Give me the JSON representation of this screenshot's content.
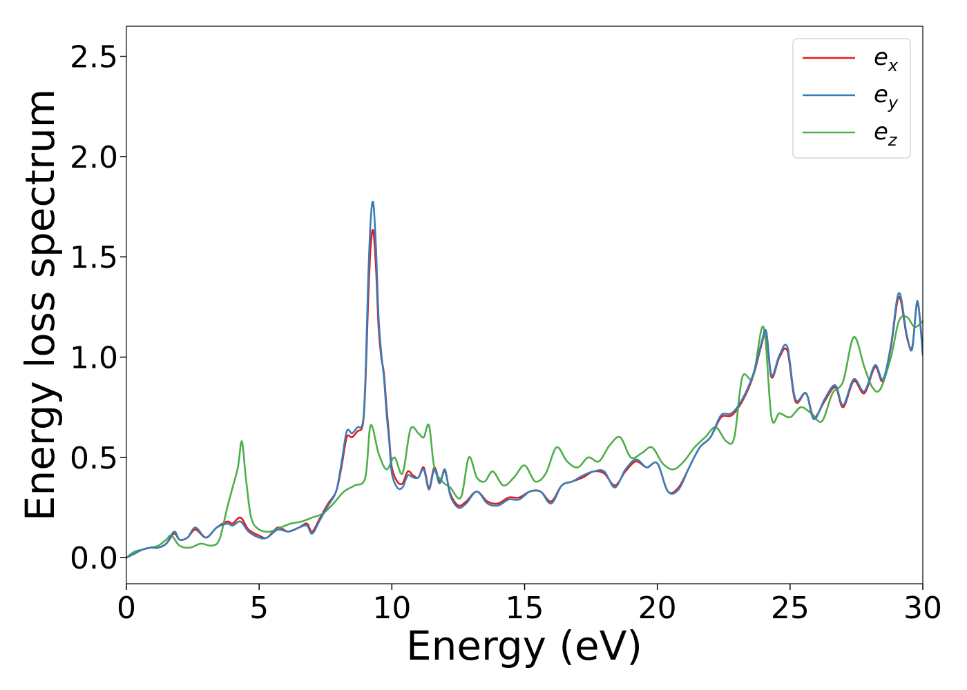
{
  "chart_data": {
    "type": "line",
    "title": "",
    "xlabel": "Energy (eV)",
    "ylabel": "Energy loss spectrum",
    "xlim": [
      0,
      30
    ],
    "ylim": [
      -0.13,
      2.65
    ],
    "xticks": [
      0,
      5,
      10,
      15,
      20,
      25,
      30
    ],
    "xtick_labels": [
      "0",
      "5",
      "10",
      "15",
      "20",
      "25",
      "30"
    ],
    "yticks": [
      0.0,
      0.5,
      1.0,
      1.5,
      2.0,
      2.5
    ],
    "ytick_labels": [
      "0.0",
      "0.5",
      "1.0",
      "1.5",
      "2.0",
      "2.5"
    ],
    "grid": false,
    "legend_position": "top-right",
    "series": [
      {
        "name": "e_x",
        "label_base": "e",
        "label_sub": "x",
        "color": "#e41a1c",
        "points": [
          [
            0,
            0
          ],
          [
            0.3,
            0.02
          ],
          [
            0.6,
            0.04
          ],
          [
            0.9,
            0.05
          ],
          [
            1.2,
            0.05
          ],
          [
            1.5,
            0.07
          ],
          [
            1.8,
            0.12
          ],
          [
            2.0,
            0.09
          ],
          [
            2.3,
            0.1
          ],
          [
            2.6,
            0.14
          ],
          [
            3.0,
            0.1
          ],
          [
            3.4,
            0.15
          ],
          [
            3.8,
            0.18
          ],
          [
            4.0,
            0.17
          ],
          [
            4.3,
            0.2
          ],
          [
            4.6,
            0.14
          ],
          [
            5.0,
            0.11
          ],
          [
            5.3,
            0.1
          ],
          [
            5.7,
            0.15
          ],
          [
            6.1,
            0.13
          ],
          [
            6.5,
            0.15
          ],
          [
            6.8,
            0.17
          ],
          [
            7.0,
            0.13
          ],
          [
            7.3,
            0.2
          ],
          [
            7.6,
            0.27
          ],
          [
            7.9,
            0.33
          ],
          [
            8.1,
            0.45
          ],
          [
            8.3,
            0.6
          ],
          [
            8.5,
            0.6
          ],
          [
            8.7,
            0.63
          ],
          [
            8.9,
            0.66
          ],
          [
            9.0,
            0.85
          ],
          [
            9.1,
            1.25
          ],
          [
            9.2,
            1.55
          ],
          [
            9.3,
            1.63
          ],
          [
            9.4,
            1.45
          ],
          [
            9.5,
            1.15
          ],
          [
            9.6,
            1.0
          ],
          [
            9.7,
            0.92
          ],
          [
            9.8,
            0.75
          ],
          [
            9.9,
            0.6
          ],
          [
            10.0,
            0.45
          ],
          [
            10.2,
            0.38
          ],
          [
            10.4,
            0.37
          ],
          [
            10.6,
            0.43
          ],
          [
            10.8,
            0.41
          ],
          [
            11.0,
            0.4
          ],
          [
            11.2,
            0.45
          ],
          [
            11.4,
            0.35
          ],
          [
            11.6,
            0.45
          ],
          [
            11.8,
            0.38
          ],
          [
            12.0,
            0.43
          ],
          [
            12.2,
            0.32
          ],
          [
            12.5,
            0.26
          ],
          [
            12.8,
            0.28
          ],
          [
            13.2,
            0.33
          ],
          [
            13.6,
            0.28
          ],
          [
            14.0,
            0.27
          ],
          [
            14.4,
            0.3
          ],
          [
            14.8,
            0.3
          ],
          [
            15.2,
            0.33
          ],
          [
            15.6,
            0.33
          ],
          [
            16.0,
            0.28
          ],
          [
            16.4,
            0.36
          ],
          [
            16.8,
            0.38
          ],
          [
            17.2,
            0.4
          ],
          [
            17.6,
            0.43
          ],
          [
            18.0,
            0.42
          ],
          [
            18.4,
            0.36
          ],
          [
            18.8,
            0.43
          ],
          [
            19.2,
            0.48
          ],
          [
            19.6,
            0.45
          ],
          [
            20.0,
            0.47
          ],
          [
            20.4,
            0.33
          ],
          [
            20.8,
            0.35
          ],
          [
            21.2,
            0.45
          ],
          [
            21.6,
            0.55
          ],
          [
            22.0,
            0.6
          ],
          [
            22.4,
            0.7
          ],
          [
            22.8,
            0.71
          ],
          [
            23.2,
            0.78
          ],
          [
            23.6,
            0.9
          ],
          [
            23.9,
            1.05
          ],
          [
            24.1,
            1.12
          ],
          [
            24.3,
            0.9
          ],
          [
            24.6,
            1.0
          ],
          [
            24.9,
            1.03
          ],
          [
            25.2,
            0.78
          ],
          [
            25.6,
            0.82
          ],
          [
            25.9,
            0.7
          ],
          [
            26.3,
            0.78
          ],
          [
            26.7,
            0.85
          ],
          [
            27.0,
            0.75
          ],
          [
            27.4,
            0.88
          ],
          [
            27.8,
            0.82
          ],
          [
            28.2,
            0.95
          ],
          [
            28.5,
            0.88
          ],
          [
            28.8,
            1.05
          ],
          [
            29.1,
            1.3
          ],
          [
            29.4,
            1.1
          ],
          [
            29.6,
            1.05
          ],
          [
            29.8,
            1.27
          ],
          [
            30.0,
            1.02
          ]
        ]
      },
      {
        "name": "e_y",
        "label_base": "e",
        "label_sub": "y",
        "color": "#377eb8",
        "points": [
          [
            0,
            0
          ],
          [
            0.3,
            0.02
          ],
          [
            0.6,
            0.04
          ],
          [
            0.9,
            0.05
          ],
          [
            1.2,
            0.05
          ],
          [
            1.5,
            0.07
          ],
          [
            1.8,
            0.13
          ],
          [
            2.0,
            0.09
          ],
          [
            2.3,
            0.1
          ],
          [
            2.6,
            0.15
          ],
          [
            3.0,
            0.1
          ],
          [
            3.4,
            0.15
          ],
          [
            3.8,
            0.17
          ],
          [
            4.0,
            0.16
          ],
          [
            4.3,
            0.18
          ],
          [
            4.6,
            0.13
          ],
          [
            5.0,
            0.1
          ],
          [
            5.3,
            0.1
          ],
          [
            5.7,
            0.14
          ],
          [
            6.1,
            0.13
          ],
          [
            6.5,
            0.15
          ],
          [
            6.8,
            0.16
          ],
          [
            7.0,
            0.12
          ],
          [
            7.3,
            0.19
          ],
          [
            7.6,
            0.26
          ],
          [
            7.9,
            0.33
          ],
          [
            8.1,
            0.47
          ],
          [
            8.3,
            0.63
          ],
          [
            8.5,
            0.62
          ],
          [
            8.7,
            0.65
          ],
          [
            8.9,
            0.67
          ],
          [
            9.0,
            0.88
          ],
          [
            9.1,
            1.35
          ],
          [
            9.2,
            1.68
          ],
          [
            9.3,
            1.77
          ],
          [
            9.4,
            1.55
          ],
          [
            9.5,
            1.2
          ],
          [
            9.6,
            1.02
          ],
          [
            9.7,
            0.9
          ],
          [
            9.8,
            0.72
          ],
          [
            9.9,
            0.58
          ],
          [
            10.0,
            0.42
          ],
          [
            10.2,
            0.35
          ],
          [
            10.4,
            0.35
          ],
          [
            10.6,
            0.41
          ],
          [
            10.8,
            0.4
          ],
          [
            11.0,
            0.4
          ],
          [
            11.2,
            0.44
          ],
          [
            11.4,
            0.34
          ],
          [
            11.6,
            0.44
          ],
          [
            11.8,
            0.37
          ],
          [
            12.0,
            0.44
          ],
          [
            12.2,
            0.31
          ],
          [
            12.5,
            0.25
          ],
          [
            12.8,
            0.27
          ],
          [
            13.2,
            0.33
          ],
          [
            13.6,
            0.27
          ],
          [
            14.0,
            0.26
          ],
          [
            14.4,
            0.29
          ],
          [
            14.8,
            0.29
          ],
          [
            15.2,
            0.33
          ],
          [
            15.6,
            0.33
          ],
          [
            16.0,
            0.27
          ],
          [
            16.4,
            0.36
          ],
          [
            16.8,
            0.38
          ],
          [
            17.2,
            0.41
          ],
          [
            17.6,
            0.43
          ],
          [
            18.0,
            0.43
          ],
          [
            18.4,
            0.35
          ],
          [
            18.8,
            0.44
          ],
          [
            19.2,
            0.49
          ],
          [
            19.6,
            0.45
          ],
          [
            20.0,
            0.47
          ],
          [
            20.4,
            0.33
          ],
          [
            20.8,
            0.34
          ],
          [
            21.2,
            0.45
          ],
          [
            21.6,
            0.55
          ],
          [
            22.0,
            0.6
          ],
          [
            22.4,
            0.71
          ],
          [
            22.8,
            0.72
          ],
          [
            23.2,
            0.79
          ],
          [
            23.6,
            0.91
          ],
          [
            23.9,
            1.06
          ],
          [
            24.1,
            1.13
          ],
          [
            24.3,
            0.91
          ],
          [
            24.6,
            1.01
          ],
          [
            24.9,
            1.05
          ],
          [
            25.2,
            0.79
          ],
          [
            25.6,
            0.82
          ],
          [
            25.9,
            0.69
          ],
          [
            26.3,
            0.79
          ],
          [
            26.7,
            0.86
          ],
          [
            27.0,
            0.76
          ],
          [
            27.4,
            0.89
          ],
          [
            27.8,
            0.83
          ],
          [
            28.2,
            0.96
          ],
          [
            28.5,
            0.89
          ],
          [
            28.8,
            1.06
          ],
          [
            29.1,
            1.32
          ],
          [
            29.4,
            1.11
          ],
          [
            29.6,
            1.04
          ],
          [
            29.8,
            1.28
          ],
          [
            30.0,
            1.01
          ]
        ]
      },
      {
        "name": "e_z",
        "label_base": "e",
        "label_sub": "z",
        "color": "#4daf4a",
        "points": [
          [
            0,
            0
          ],
          [
            0.3,
            0.03
          ],
          [
            0.6,
            0.04
          ],
          [
            0.9,
            0.05
          ],
          [
            1.2,
            0.06
          ],
          [
            1.5,
            0.09
          ],
          [
            1.7,
            0.11
          ],
          [
            2.0,
            0.06
          ],
          [
            2.4,
            0.05
          ],
          [
            2.8,
            0.07
          ],
          [
            3.2,
            0.06
          ],
          [
            3.5,
            0.09
          ],
          [
            3.8,
            0.25
          ],
          [
            4.0,
            0.35
          ],
          [
            4.2,
            0.45
          ],
          [
            4.35,
            0.58
          ],
          [
            4.5,
            0.4
          ],
          [
            4.7,
            0.2
          ],
          [
            5.0,
            0.14
          ],
          [
            5.4,
            0.13
          ],
          [
            5.8,
            0.15
          ],
          [
            6.2,
            0.17
          ],
          [
            6.6,
            0.18
          ],
          [
            7.0,
            0.2
          ],
          [
            7.4,
            0.22
          ],
          [
            7.8,
            0.27
          ],
          [
            8.2,
            0.33
          ],
          [
            8.6,
            0.36
          ],
          [
            9.0,
            0.4
          ],
          [
            9.2,
            0.66
          ],
          [
            9.5,
            0.52
          ],
          [
            9.8,
            0.44
          ],
          [
            10.1,
            0.5
          ],
          [
            10.4,
            0.42
          ],
          [
            10.7,
            0.64
          ],
          [
            11.0,
            0.62
          ],
          [
            11.2,
            0.6
          ],
          [
            11.4,
            0.66
          ],
          [
            11.6,
            0.45
          ],
          [
            11.9,
            0.38
          ],
          [
            12.2,
            0.35
          ],
          [
            12.6,
            0.3
          ],
          [
            12.9,
            0.5
          ],
          [
            13.2,
            0.4
          ],
          [
            13.5,
            0.38
          ],
          [
            13.8,
            0.43
          ],
          [
            14.2,
            0.36
          ],
          [
            14.6,
            0.4
          ],
          [
            15.0,
            0.46
          ],
          [
            15.4,
            0.38
          ],
          [
            15.8,
            0.42
          ],
          [
            16.2,
            0.55
          ],
          [
            16.6,
            0.48
          ],
          [
            17.0,
            0.45
          ],
          [
            17.4,
            0.5
          ],
          [
            17.8,
            0.48
          ],
          [
            18.2,
            0.56
          ],
          [
            18.6,
            0.6
          ],
          [
            19.0,
            0.5
          ],
          [
            19.4,
            0.52
          ],
          [
            19.8,
            0.55
          ],
          [
            20.2,
            0.47
          ],
          [
            20.6,
            0.44
          ],
          [
            21.0,
            0.48
          ],
          [
            21.4,
            0.55
          ],
          [
            21.8,
            0.6
          ],
          [
            22.2,
            0.65
          ],
          [
            22.6,
            0.58
          ],
          [
            22.9,
            0.6
          ],
          [
            23.2,
            0.9
          ],
          [
            23.6,
            0.9
          ],
          [
            24.0,
            1.15
          ],
          [
            24.3,
            0.7
          ],
          [
            24.6,
            0.72
          ],
          [
            25.0,
            0.7
          ],
          [
            25.4,
            0.75
          ],
          [
            25.8,
            0.72
          ],
          [
            26.2,
            0.68
          ],
          [
            26.6,
            0.82
          ],
          [
            27.0,
            0.88
          ],
          [
            27.4,
            1.1
          ],
          [
            27.8,
            0.95
          ],
          [
            28.1,
            0.85
          ],
          [
            28.4,
            0.84
          ],
          [
            28.8,
            1.0
          ],
          [
            29.1,
            1.18
          ],
          [
            29.4,
            1.2
          ],
          [
            29.7,
            1.15
          ],
          [
            30.0,
            1.18
          ]
        ]
      }
    ]
  }
}
